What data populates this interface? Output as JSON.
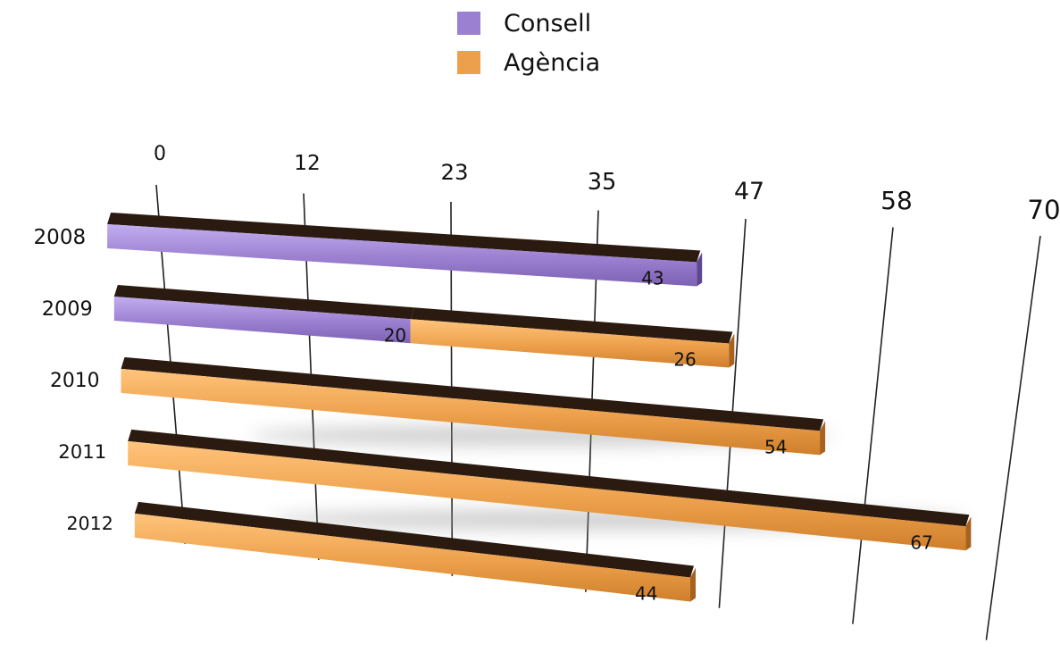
{
  "chart_data": {
    "type": "bar",
    "orientation": "horizontal",
    "stacked": true,
    "categories": [
      "2008",
      "2009",
      "2010",
      "2011",
      "2012"
    ],
    "series": [
      {
        "name": "Consell",
        "color": "#9b7fd0",
        "values": [
          43,
          20,
          0,
          0,
          0
        ]
      },
      {
        "name": "Agència",
        "color": "#eda04b",
        "values": [
          0,
          26,
          54,
          67,
          44
        ]
      }
    ],
    "x_ticks": [
      "0",
      "12",
      "23",
      "35",
      "47",
      "58",
      "70"
    ],
    "xlim": [
      0,
      70
    ],
    "grid": true,
    "legend": "top-center",
    "data_labels": [
      {
        "category": "2008",
        "series": "Consell",
        "text": "43"
      },
      {
        "category": "2009",
        "series": "Consell",
        "text": "20"
      },
      {
        "category": "2009",
        "series": "Agència",
        "text": "26"
      },
      {
        "category": "2010",
        "series": "Agència",
        "text": "54"
      },
      {
        "category": "2011",
        "series": "Agència",
        "text": "67"
      },
      {
        "category": "2012",
        "series": "Agència",
        "text": "44"
      }
    ]
  }
}
